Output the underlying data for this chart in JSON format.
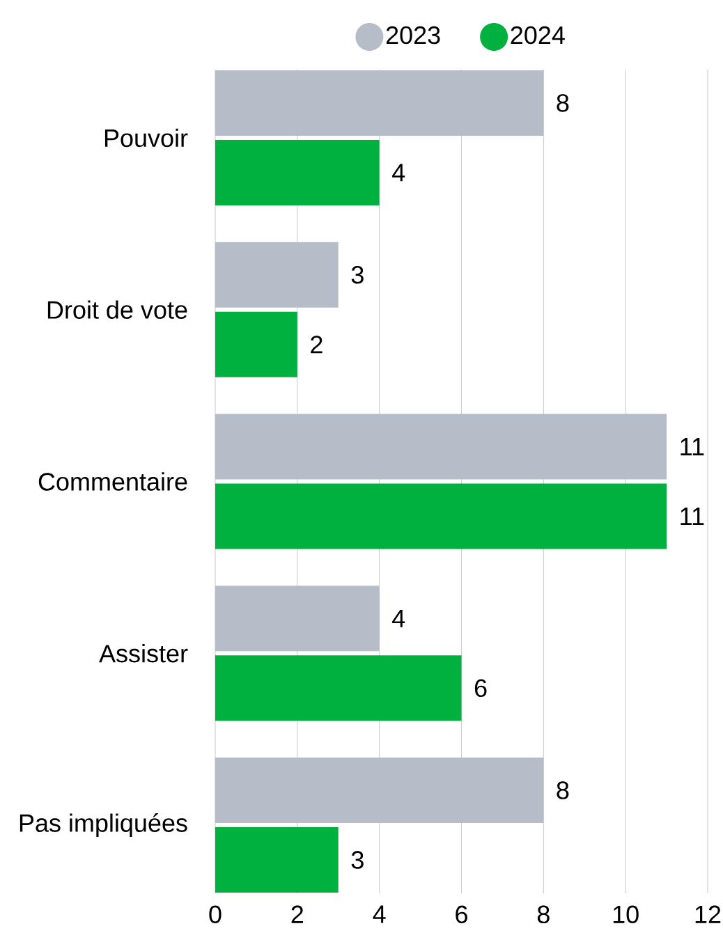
{
  "chart_data": {
    "type": "bar",
    "orientation": "horizontal",
    "categories": [
      "Pouvoir",
      "Droit de vote",
      "Commentaire",
      "Assister",
      "Pas impliquées"
    ],
    "series": [
      {
        "name": "2023",
        "color": "#b6bcc8",
        "values": [
          8,
          3,
          11,
          4,
          8
        ]
      },
      {
        "name": "2024",
        "color": "#00b140",
        "values": [
          4,
          2,
          11,
          6,
          3
        ]
      }
    ],
    "xlim": [
      0,
      12
    ],
    "xticks": [
      0,
      2,
      4,
      6,
      8,
      10,
      12
    ],
    "grid": "x",
    "legend": "top",
    "data_labels": true
  }
}
